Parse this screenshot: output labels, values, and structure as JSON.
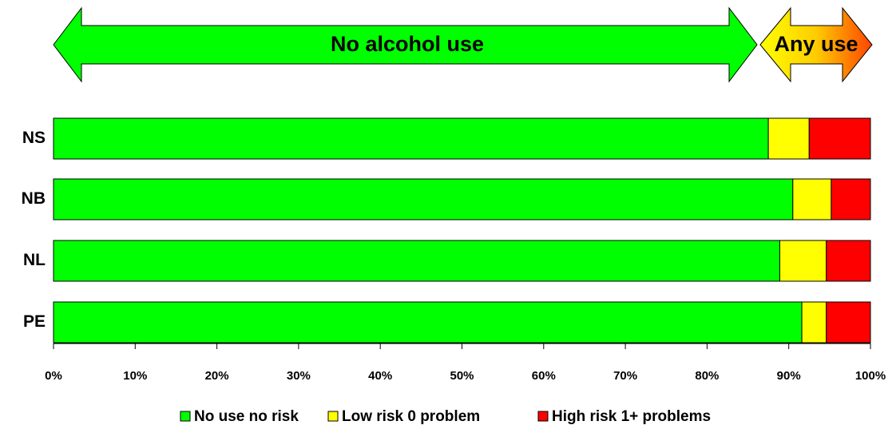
{
  "chart_data": {
    "type": "stacked-bar-horizontal",
    "annotations": [
      "No alcohol use",
      "Any use"
    ],
    "categories": [
      "NS",
      "NB",
      "NL",
      "PE"
    ],
    "series": [
      {
        "name": "No use no risk",
        "color": "#00ff00",
        "values": [
          87.5,
          90.5,
          88.9,
          91.6
        ]
      },
      {
        "name": "Low risk 0 problem",
        "color": "#ffff00",
        "values": [
          5.0,
          4.7,
          5.7,
          3.0
        ]
      },
      {
        "name": "High risk 1+ problems",
        "color": "#ff0000",
        "values": [
          7.5,
          4.8,
          5.4,
          5.4
        ]
      }
    ],
    "xlim": [
      0,
      100
    ],
    "xticks": [
      {
        "value": 0,
        "label": "0%"
      },
      {
        "value": 10,
        "label": "10%"
      },
      {
        "value": 20,
        "label": "20%"
      },
      {
        "value": 30,
        "label": "30%"
      },
      {
        "value": 40,
        "label": "40%"
      },
      {
        "value": 50,
        "label": "50%"
      },
      {
        "value": 60,
        "label": "60%"
      },
      {
        "value": 70,
        "label": "70%"
      },
      {
        "value": 80,
        "label": "80%"
      },
      {
        "value": 90,
        "label": "90%"
      },
      {
        "value": 100,
        "label": "100%"
      }
    ],
    "legend": "bottom"
  }
}
